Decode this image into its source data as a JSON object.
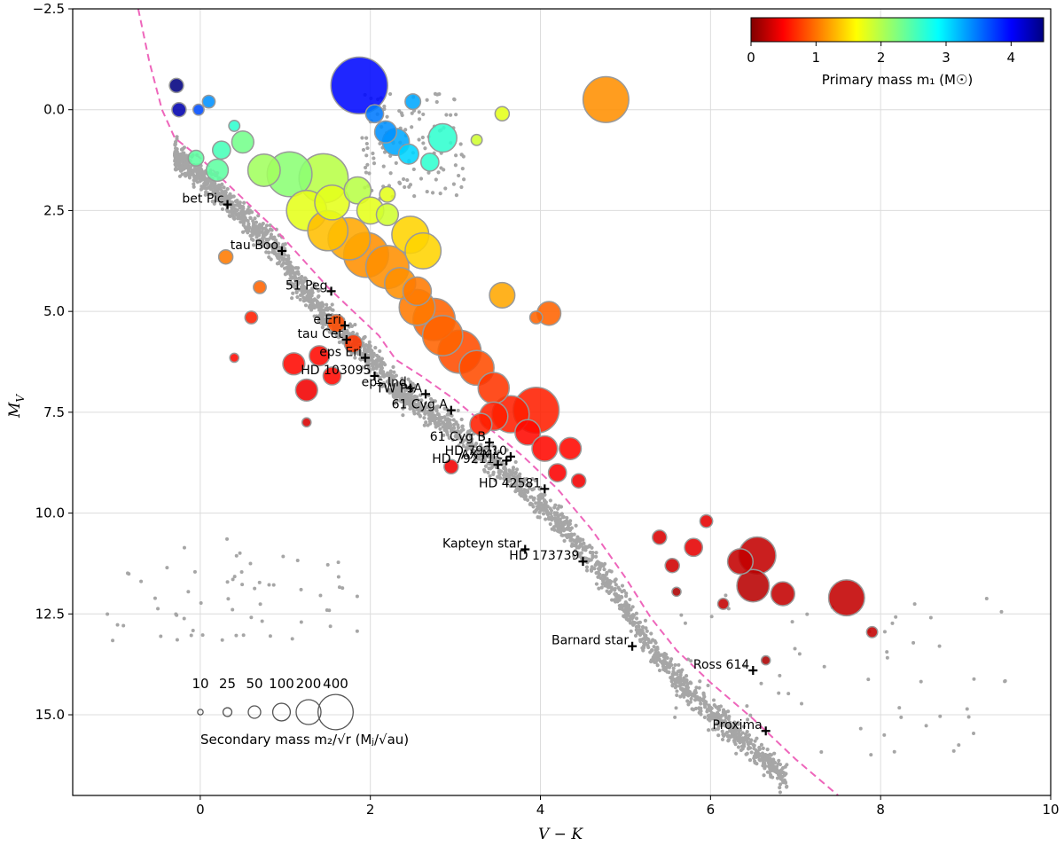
{
  "chart_data": {
    "type": "scatter",
    "xlabel": "V − K",
    "ylabel": "M",
    "ylabel_sub": "V",
    "xlim": [
      -1.5,
      10
    ],
    "ylim": [
      17,
      -2.5
    ],
    "x_ticks": [
      0,
      2,
      4,
      6,
      8,
      10
    ],
    "y_ticks": [
      -2.5,
      0.0,
      2.5,
      5.0,
      7.5,
      10.0,
      12.5,
      15.0
    ],
    "y_tick_labels": [
      "−2.5",
      "0.0",
      "2.5",
      "5.0",
      "7.5",
      "10.0",
      "12.5",
      "15.0"
    ],
    "grid": true,
    "colorbar": {
      "label": "Primary mass m₁ (M☉)",
      "range": [
        0,
        4.5
      ],
      "ticks": [
        0,
        1,
        2,
        3,
        4
      ],
      "colormap": "jet",
      "placement": "top-right"
    },
    "size_legend": {
      "values": [
        10,
        25,
        50,
        100,
        200,
        400
      ],
      "label": "Secondary mass m₂/√r (Mⱼ/√au)",
      "placement": "bottom-left"
    },
    "main_sequence_curve": {
      "color": "#ee66bb",
      "style": "dashed",
      "points": [
        [
          -0.73,
          -2.5
        ],
        [
          -0.6,
          -1.2
        ],
        [
          -0.45,
          0.0
        ],
        [
          -0.3,
          0.7
        ],
        [
          0.0,
          1.2
        ],
        [
          0.3,
          1.8
        ],
        [
          0.6,
          2.4
        ],
        [
          0.9,
          3.0
        ],
        [
          1.2,
          3.7
        ],
        [
          1.5,
          4.4
        ],
        [
          1.8,
          5.0
        ],
        [
          2.1,
          5.6
        ],
        [
          2.3,
          6.2
        ],
        [
          2.6,
          6.6
        ],
        [
          3.0,
          7.2
        ],
        [
          3.4,
          7.9
        ],
        [
          3.8,
          8.6
        ],
        [
          4.2,
          9.4
        ],
        [
          4.6,
          10.4
        ],
        [
          5.0,
          11.6
        ],
        [
          5.3,
          12.6
        ],
        [
          5.6,
          13.4
        ],
        [
          6.0,
          14.2
        ],
        [
          6.5,
          15.1
        ],
        [
          7.0,
          16.1
        ],
        [
          7.5,
          17.0
        ]
      ]
    },
    "named_stars": [
      {
        "name": "bet Pic",
        "x": 0.32,
        "y": 2.35
      },
      {
        "name": "tau Boo",
        "x": 0.96,
        "y": 3.5
      },
      {
        "name": "51 Peg",
        "x": 1.54,
        "y": 4.5
      },
      {
        "name": "e Eri",
        "x": 1.7,
        "y": 5.35
      },
      {
        "name": "tau Cet",
        "x": 1.72,
        "y": 5.7
      },
      {
        "name": "eps Eri",
        "x": 1.94,
        "y": 6.15
      },
      {
        "name": "HD 103095",
        "x": 2.05,
        "y": 6.6
      },
      {
        "name": "eps Ind",
        "x": 2.47,
        "y": 6.9
      },
      {
        "name": "TW PsA",
        "x": 2.65,
        "y": 7.05
      },
      {
        "name": "61 Cyg A",
        "x": 2.95,
        "y": 7.45
      },
      {
        "name": "61 Cyg B",
        "x": 3.4,
        "y": 8.25
      },
      {
        "name": "AX Mic",
        "x": 3.6,
        "y": 8.7
      },
      {
        "name": "HD 79210",
        "x": 3.65,
        "y": 8.6
      },
      {
        "name": "HD 79211",
        "x": 3.5,
        "y": 8.8
      },
      {
        "name": "HD 42581",
        "x": 4.05,
        "y": 9.4
      },
      {
        "name": "Kapteyn star",
        "x": 3.82,
        "y": 10.9
      },
      {
        "name": "HD 173739",
        "x": 4.5,
        "y": 11.2
      },
      {
        "name": "Barnard star",
        "x": 5.08,
        "y": 13.3
      },
      {
        "name": "Ross 614",
        "x": 6.5,
        "y": 13.9
      },
      {
        "name": "Proxima",
        "x": 6.65,
        "y": 15.4
      }
    ],
    "planet_hosts": [
      {
        "x": 1.87,
        "y": -0.6,
        "m1": 3.9,
        "m2": 400
      },
      {
        "x": 4.77,
        "y": -0.25,
        "m1": 1.2,
        "m2": 260
      },
      {
        "x": -0.28,
        "y": -0.6,
        "m1": 4.5,
        "m2": 25
      },
      {
        "x": -0.25,
        "y": 0.0,
        "m1": 4.3,
        "m2": 25
      },
      {
        "x": -0.02,
        "y": 0.0,
        "m1": 3.6,
        "m2": 15
      },
      {
        "x": 0.1,
        "y": -0.2,
        "m1": 3.3,
        "m2": 20
      },
      {
        "x": 0.4,
        "y": 0.4,
        "m1": 2.6,
        "m2": 15
      },
      {
        "x": 2.18,
        "y": 0.55,
        "m1": 3.3,
        "m2": 60
      },
      {
        "x": 2.3,
        "y": 0.8,
        "m1": 3.2,
        "m2": 90
      },
      {
        "x": 2.05,
        "y": 0.1,
        "m1": 3.4,
        "m2": 40
      },
      {
        "x": 2.5,
        "y": -0.2,
        "m1": 3.2,
        "m2": 30
      },
      {
        "x": 2.85,
        "y": 0.7,
        "m1": 2.6,
        "m2": 100
      },
      {
        "x": 2.45,
        "y": 1.1,
        "m1": 3.0,
        "m2": 50
      },
      {
        "x": 3.55,
        "y": 0.1,
        "m1": 1.8,
        "m2": 25
      },
      {
        "x": 3.25,
        "y": 0.75,
        "m1": 1.9,
        "m2": 15
      },
      {
        "x": 2.7,
        "y": 1.3,
        "m1": 2.6,
        "m2": 40
      },
      {
        "x": 1.05,
        "y": 1.6,
        "m1": 2.2,
        "m2": 250
      },
      {
        "x": 1.45,
        "y": 1.7,
        "m1": 2.0,
        "m2": 300
      },
      {
        "x": 0.75,
        "y": 1.5,
        "m1": 2.1,
        "m2": 130
      },
      {
        "x": 0.2,
        "y": 1.5,
        "m1": 2.4,
        "m2": 60
      },
      {
        "x": 0.5,
        "y": 0.8,
        "m1": 2.3,
        "m2": 60
      },
      {
        "x": 0.25,
        "y": 1.0,
        "m1": 2.5,
        "m2": 40
      },
      {
        "x": -0.05,
        "y": 1.2,
        "m1": 2.4,
        "m2": 30
      },
      {
        "x": 1.55,
        "y": 2.3,
        "m1": 1.8,
        "m2": 150
      },
      {
        "x": 1.85,
        "y": 2.0,
        "m1": 2.0,
        "m2": 90
      },
      {
        "x": 2.0,
        "y": 2.5,
        "m1": 1.8,
        "m2": 90
      },
      {
        "x": 2.2,
        "y": 2.6,
        "m1": 1.9,
        "m2": 60
      },
      {
        "x": 2.2,
        "y": 2.1,
        "m1": 1.8,
        "m2": 30
      },
      {
        "x": 1.25,
        "y": 2.5,
        "m1": 1.8,
        "m2": 200
      },
      {
        "x": 1.5,
        "y": 3.0,
        "m1": 1.4,
        "m2": 200
      },
      {
        "x": 1.75,
        "y": 3.2,
        "m1": 1.3,
        "m2": 220
      },
      {
        "x": 1.95,
        "y": 3.6,
        "m1": 1.2,
        "m2": 250
      },
      {
        "x": 2.2,
        "y": 3.9,
        "m1": 1.2,
        "m2": 230
      },
      {
        "x": 2.47,
        "y": 3.1,
        "m1": 1.5,
        "m2": 170
      },
      {
        "x": 2.62,
        "y": 3.5,
        "m1": 1.5,
        "m2": 160
      },
      {
        "x": 2.35,
        "y": 4.3,
        "m1": 1.2,
        "m2": 120
      },
      {
        "x": 2.55,
        "y": 4.5,
        "m1": 1.1,
        "m2": 100
      },
      {
        "x": 2.55,
        "y": 4.9,
        "m1": 1.1,
        "m2": 160
      },
      {
        "x": 2.75,
        "y": 5.2,
        "m1": 1.0,
        "m2": 220
      },
      {
        "x": 2.85,
        "y": 5.6,
        "m1": 1.0,
        "m2": 200
      },
      {
        "x": 3.05,
        "y": 6.0,
        "m1": 0.9,
        "m2": 230
      },
      {
        "x": 3.25,
        "y": 6.4,
        "m1": 0.9,
        "m2": 150
      },
      {
        "x": 3.45,
        "y": 6.9,
        "m1": 0.8,
        "m2": 120
      },
      {
        "x": 3.55,
        "y": 4.6,
        "m1": 1.3,
        "m2": 80
      },
      {
        "x": 4.1,
        "y": 5.05,
        "m1": 1.0,
        "m2": 70
      },
      {
        "x": 3.95,
        "y": 5.15,
        "m1": 1.0,
        "m2": 20
      },
      {
        "x": 3.95,
        "y": 7.45,
        "m1": 0.7,
        "m2": 260
      },
      {
        "x": 3.65,
        "y": 7.55,
        "m1": 0.7,
        "m2": 170
      },
      {
        "x": 3.45,
        "y": 7.6,
        "m1": 0.7,
        "m2": 100
      },
      {
        "x": 3.3,
        "y": 7.8,
        "m1": 0.7,
        "m2": 60
      },
      {
        "x": 3.85,
        "y": 8.0,
        "m1": 0.6,
        "m2": 80
      },
      {
        "x": 4.05,
        "y": 8.4,
        "m1": 0.6,
        "m2": 80
      },
      {
        "x": 4.35,
        "y": 8.4,
        "m1": 0.6,
        "m2": 60
      },
      {
        "x": 4.2,
        "y": 9.0,
        "m1": 0.55,
        "m2": 40
      },
      {
        "x": 4.45,
        "y": 9.2,
        "m1": 0.5,
        "m2": 25
      },
      {
        "x": 0.3,
        "y": 3.65,
        "m1": 1.1,
        "m2": 25
      },
      {
        "x": 0.7,
        "y": 4.4,
        "m1": 1.0,
        "m2": 20
      },
      {
        "x": 0.6,
        "y": 5.15,
        "m1": 0.7,
        "m2": 20
      },
      {
        "x": 0.4,
        "y": 6.15,
        "m1": 0.6,
        "m2": 10
      },
      {
        "x": 1.1,
        "y": 6.3,
        "m1": 0.6,
        "m2": 60
      },
      {
        "x": 1.4,
        "y": 6.1,
        "m1": 0.6,
        "m2": 50
      },
      {
        "x": 1.25,
        "y": 6.95,
        "m1": 0.5,
        "m2": 60
      },
      {
        "x": 1.55,
        "y": 6.6,
        "m1": 0.6,
        "m2": 40
      },
      {
        "x": 1.25,
        "y": 7.75,
        "m1": 0.4,
        "m2": 10
      },
      {
        "x": 1.6,
        "y": 5.3,
        "m1": 0.9,
        "m2": 40
      },
      {
        "x": 1.8,
        "y": 5.8,
        "m1": 0.8,
        "m2": 40
      },
      {
        "x": 2.95,
        "y": 8.85,
        "m1": 0.5,
        "m2": 25
      },
      {
        "x": 5.8,
        "y": 10.85,
        "m1": 0.45,
        "m2": 40
      },
      {
        "x": 5.4,
        "y": 10.6,
        "m1": 0.4,
        "m2": 25
      },
      {
        "x": 5.55,
        "y": 11.3,
        "m1": 0.35,
        "m2": 25
      },
      {
        "x": 5.95,
        "y": 10.2,
        "m1": 0.45,
        "m2": 20
      },
      {
        "x": 6.35,
        "y": 11.2,
        "m1": 0.3,
        "m2": 80
      },
      {
        "x": 6.5,
        "y": 11.8,
        "m1": 0.25,
        "m2": 130
      },
      {
        "x": 6.55,
        "y": 11.05,
        "m1": 0.3,
        "m2": 170
      },
      {
        "x": 6.85,
        "y": 12.0,
        "m1": 0.3,
        "m2": 70
      },
      {
        "x": 7.6,
        "y": 12.1,
        "m1": 0.3,
        "m2": 160
      },
      {
        "x": 6.15,
        "y": 12.25,
        "m1": 0.3,
        "m2": 15
      },
      {
        "x": 7.9,
        "y": 12.95,
        "m1": 0.3,
        "m2": 15
      },
      {
        "x": 6.65,
        "y": 13.65,
        "m1": 0.2,
        "m2": 10
      },
      {
        "x": 5.6,
        "y": 11.95,
        "m1": 0.2,
        "m2": 10
      }
    ]
  }
}
